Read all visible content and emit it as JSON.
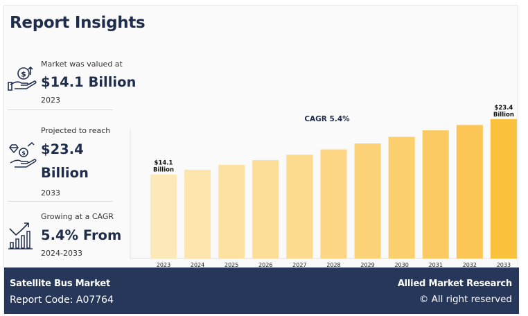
{
  "header": {
    "title": "Report Insights"
  },
  "stats": [
    {
      "label": "Market was valued at",
      "value": "$14.1 Billion",
      "sub": "2023",
      "icon": "money-hand-icon"
    },
    {
      "label": "Projected to reach",
      "value_line1": "$23.4",
      "value_line2": "Billion",
      "sub": "2033",
      "icon": "gems-hand-icon"
    },
    {
      "label": "Growing at a CAGR",
      "value": "5.4% From",
      "sub": "2024-2033",
      "icon": "growth-chart-icon"
    }
  ],
  "chart_data": {
    "type": "bar",
    "title": "CAGR 5.4%",
    "categories": [
      "2023",
      "2024",
      "2025",
      "2026",
      "2027",
      "2028",
      "2029",
      "2030",
      "2031",
      "2032",
      "2033"
    ],
    "values": [
      14.1,
      14.9,
      15.7,
      16.5,
      17.4,
      18.3,
      19.3,
      20.4,
      21.5,
      22.4,
      23.4
    ],
    "data_labels": [
      {
        "index": 0,
        "line1": "$14.1",
        "line2": "Billion"
      },
      {
        "index": 10,
        "line1": "$23.4",
        "line2": "Billion"
      }
    ],
    "ylim": [
      0,
      25
    ],
    "grid": false,
    "colors": [
      "#fde9b8",
      "#fde5ad",
      "#fde1a3",
      "#fdde99",
      "#fcda8e",
      "#fcd684",
      "#fcd279",
      "#fbce6e",
      "#fbca62",
      "#fbc655",
      "#fbc23e"
    ]
  },
  "footer": {
    "market_name": "Satellite Bus Market",
    "report_code": "Report Code: A07764",
    "brand": "Allied Market Research",
    "copyright": "© All right reserved"
  }
}
